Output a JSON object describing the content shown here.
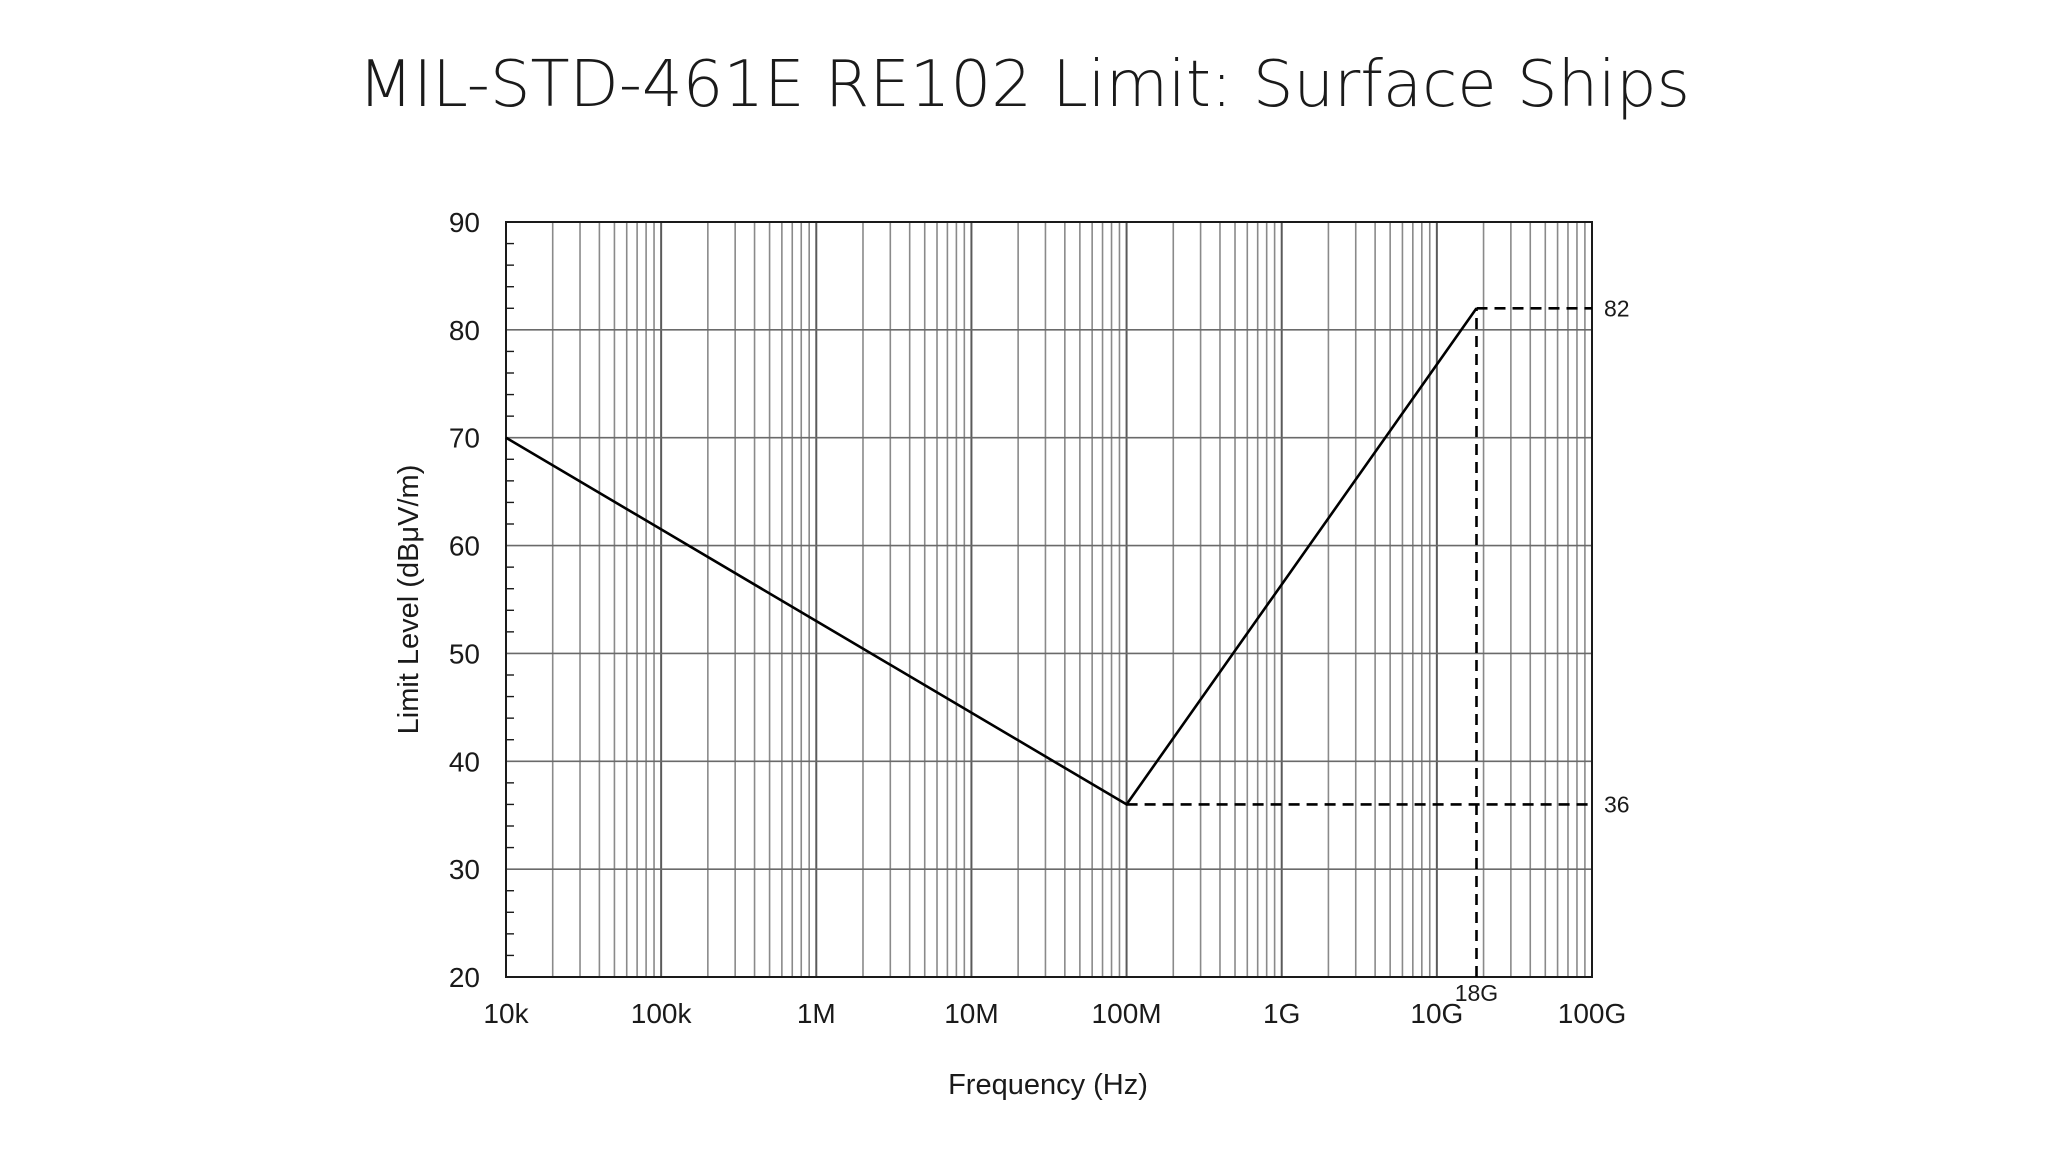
{
  "slide": {
    "title": "MIL-STD-461E RE102 Limit: Surface Ships"
  },
  "chart_data": {
    "type": "line",
    "title": "",
    "xlabel": "Frequency (Hz)",
    "ylabel": "Limit Level (dBμV/m)",
    "x_scale": "log",
    "xlim": [
      10000,
      100000000000
    ],
    "ylim": [
      20,
      90
    ],
    "grid": true,
    "x_ticks": [
      {
        "value": 10000,
        "label": "10k"
      },
      {
        "value": 100000,
        "label": "100k"
      },
      {
        "value": 1000000,
        "label": "1M"
      },
      {
        "value": 10000000,
        "label": "10M"
      },
      {
        "value": 100000000,
        "label": "100M"
      },
      {
        "value": 1000000000,
        "label": "1G"
      },
      {
        "value": 10000000000,
        "label": "10G"
      },
      {
        "value": 100000000000,
        "label": "100G"
      }
    ],
    "y_ticks": [
      {
        "value": 20,
        "label": "20"
      },
      {
        "value": 30,
        "label": "30"
      },
      {
        "value": 40,
        "label": "40"
      },
      {
        "value": 50,
        "label": "50"
      },
      {
        "value": 60,
        "label": "60"
      },
      {
        "value": 70,
        "label": "70"
      },
      {
        "value": 80,
        "label": "80"
      },
      {
        "value": 90,
        "label": "90"
      }
    ],
    "series": [
      {
        "style": "solid",
        "points": [
          {
            "x": 10000,
            "y": 70
          },
          {
            "x": 100000000,
            "y": 36
          },
          {
            "x": 18000000000,
            "y": 82
          }
        ]
      },
      {
        "style": "dashed",
        "points": [
          {
            "x": 100000000,
            "y": 36
          },
          {
            "x": 100000000000,
            "y": 36
          }
        ]
      },
      {
        "style": "dashed",
        "points": [
          {
            "x": 18000000000,
            "y": 82
          },
          {
            "x": 100000000000,
            "y": 82
          }
        ]
      },
      {
        "style": "dashed",
        "points": [
          {
            "x": 18000000000,
            "y": 20
          },
          {
            "x": 18000000000,
            "y": 82
          }
        ]
      }
    ],
    "annotations": [
      {
        "text": "82",
        "x": 100000000000,
        "y": 82,
        "placement": "right"
      },
      {
        "text": "36",
        "x": 100000000000,
        "y": 36,
        "placement": "right"
      },
      {
        "text": "18G",
        "x": 18000000000,
        "y": 20,
        "placement": "below"
      }
    ]
  }
}
